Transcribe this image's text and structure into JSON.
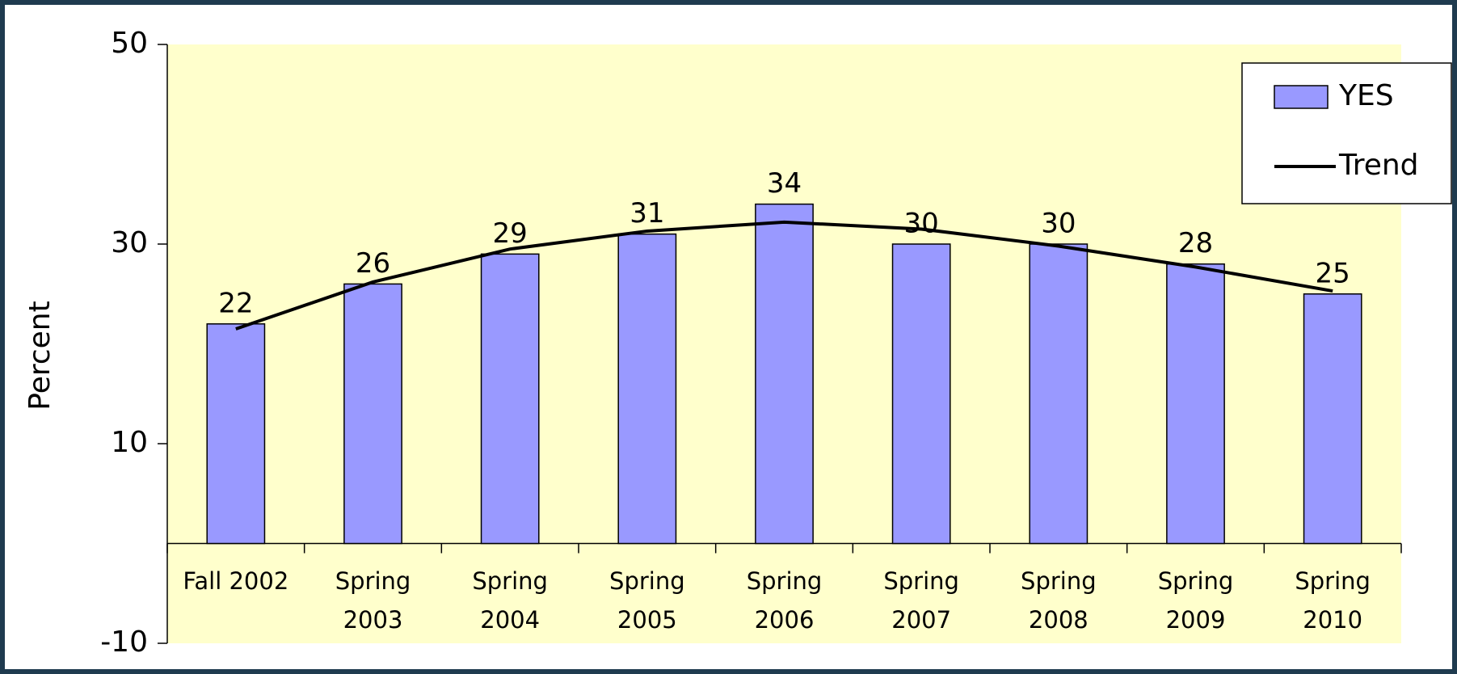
{
  "chart_data": {
    "type": "bar",
    "y_label": "Percent",
    "categories": [
      "Fall 2002",
      "Spring 2003",
      "Spring 2004",
      "Spring 2005",
      "Spring 2006",
      "Spring 2007",
      "Spring 2008",
      "Spring 2009",
      "Spring 2010"
    ],
    "series": [
      {
        "name": "YES",
        "type": "bar",
        "color": "#9999ff",
        "values": [
          22,
          26,
          29,
          31,
          34,
          30,
          30,
          28,
          25
        ]
      },
      {
        "name": "Trend",
        "type": "line",
        "color": "#000000",
        "values": [
          21.5,
          26.2,
          29.5,
          31.3,
          32.2,
          31.5,
          29.8,
          27.7,
          25.3
        ]
      }
    ],
    "ylim": [
      -10,
      50
    ],
    "yticks": [
      -10,
      10,
      30,
      50
    ],
    "legend": "top-right",
    "background": "#ffffcc"
  }
}
